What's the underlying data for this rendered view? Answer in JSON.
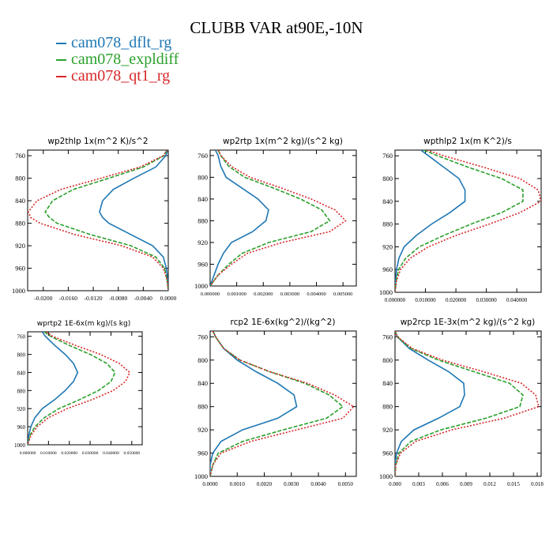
{
  "figure": {
    "title": "CLUBB VAR at90E,-10N",
    "legend": [
      {
        "name": "cam078_dflt_rg",
        "color": "#1f77b4",
        "dash": "solid"
      },
      {
        "name": "cam078_expldiff",
        "color": "#2ca02c",
        "dash": "dash"
      },
      {
        "name": "cam078_qt1_rg",
        "color": "#d62728",
        "dash": "dot"
      }
    ]
  },
  "chart_data": [
    {
      "type": "line",
      "title": "wp2thlp  1x(m^2 K)/s^2",
      "ylim": [
        1000,
        750
      ],
      "yticks": [
        "760",
        "800",
        "840",
        "880",
        "920",
        "960",
        "1000"
      ],
      "ytick_values": [
        760,
        800,
        840,
        880,
        920,
        960,
        1000
      ],
      "xlim": [
        -0.0225,
        0.0
      ],
      "xticks": [
        "-0.0200",
        "-0.0160",
        "-0.0120",
        "-0.0080",
        "-0.0040",
        "0.0000"
      ],
      "xtick_values": [
        -0.02,
        -0.016,
        -0.012,
        -0.008,
        -0.004,
        0.0
      ],
      "y": [
        750,
        760,
        780,
        800,
        820,
        840,
        860,
        870,
        880,
        900,
        920,
        940,
        960,
        980,
        1000
      ],
      "series": [
        {
          "name": "cam078_dflt_rg",
          "values": [
            -0.0001,
            -0.0004,
            -0.002,
            -0.0055,
            -0.0088,
            -0.0105,
            -0.011,
            -0.0105,
            -0.0095,
            -0.006,
            -0.0025,
            -0.0008,
            -0.0003,
            -0.0001,
            0.0
          ]
        },
        {
          "name": "cam078_expldiff",
          "values": [
            -0.0002,
            -0.0007,
            -0.004,
            -0.0095,
            -0.0152,
            -0.0185,
            -0.0197,
            -0.019,
            -0.0178,
            -0.0125,
            -0.006,
            -0.002,
            -0.0006,
            -0.0002,
            0.0
          ]
        },
        {
          "name": "cam078_qt1_rg",
          "values": [
            -0.0002,
            -0.0008,
            -0.0045,
            -0.0108,
            -0.0172,
            -0.021,
            -0.0224,
            -0.022,
            -0.0205,
            -0.015,
            -0.0075,
            -0.0025,
            -0.0008,
            -0.0002,
            0.0
          ]
        }
      ]
    },
    {
      "type": "line",
      "title": "wp2rtp  1x(m^2 kg)/(s^2 kg)",
      "ylim": [
        1000,
        750
      ],
      "yticks": [
        "760",
        "800",
        "840",
        "880",
        "920",
        "960",
        "1000"
      ],
      "ytick_values": [
        760,
        800,
        840,
        880,
        920,
        960,
        1000
      ],
      "xlim": [
        0.0,
        0.0055
      ],
      "xticks": [
        "0.000000",
        "0.001000",
        "0.002000",
        "0.003000",
        "0.004000",
        "0.005000"
      ],
      "xtick_values": [
        0.0,
        0.001,
        0.002,
        0.003,
        0.004,
        0.005
      ],
      "y": [
        750,
        760,
        780,
        800,
        820,
        840,
        860,
        880,
        900,
        920,
        940,
        960,
        980,
        1000
      ],
      "series": [
        {
          "name": "cam078_dflt_rg",
          "values": [
            0.0002,
            0.0003,
            0.0004,
            0.0006,
            0.0012,
            0.0018,
            0.0022,
            0.0021,
            0.0016,
            0.0008,
            0.0005,
            0.0003,
            0.00015,
            0.0
          ]
        },
        {
          "name": "cam078_expldiff",
          "values": [
            0.0003,
            0.0004,
            0.0007,
            0.0013,
            0.0024,
            0.0034,
            0.0042,
            0.0045,
            0.0038,
            0.0022,
            0.0012,
            0.0007,
            0.0003,
            0.0
          ]
        },
        {
          "name": "cam078_qt1_rg",
          "values": [
            0.0003,
            0.0004,
            0.0008,
            0.0015,
            0.0027,
            0.0038,
            0.0047,
            0.0051,
            0.0045,
            0.0027,
            0.0014,
            0.0008,
            0.0003,
            0.0
          ]
        }
      ]
    },
    {
      "type": "line",
      "title": "wpthlp2  1x(m K^2)/s",
      "ylim": [
        1000,
        750
      ],
      "yticks": [
        "760",
        "800",
        "840",
        "880",
        "920",
        "960",
        "1000"
      ],
      "ytick_values": [
        760,
        800,
        840,
        880,
        920,
        960,
        1000
      ],
      "xlim": [
        0.0,
        0.048
      ],
      "xticks": [
        "0.000000",
        "0.010000",
        "0.020000",
        "0.030000",
        "0.040000"
      ],
      "xtick_values": [
        0.0,
        0.01,
        0.02,
        0.03,
        0.04
      ],
      "y": [
        750,
        760,
        780,
        800,
        820,
        840,
        860,
        880,
        900,
        920,
        940,
        960,
        980,
        1000
      ],
      "series": [
        {
          "name": "cam078_dflt_rg",
          "values": [
            0.0085,
            0.011,
            0.016,
            0.021,
            0.023,
            0.023,
            0.018,
            0.012,
            0.007,
            0.003,
            0.0013,
            0.0005,
            0.0002,
            0.0
          ]
        },
        {
          "name": "cam078_expldiff",
          "values": [
            0.0095,
            0.014,
            0.024,
            0.035,
            0.042,
            0.042,
            0.035,
            0.025,
            0.016,
            0.008,
            0.0035,
            0.0012,
            0.0004,
            0.0
          ]
        },
        {
          "name": "cam078_qt1_rg",
          "values": [
            0.0105,
            0.016,
            0.029,
            0.041,
            0.047,
            0.048,
            0.041,
            0.031,
            0.02,
            0.011,
            0.005,
            0.0018,
            0.0005,
            0.0
          ]
        }
      ]
    },
    {
      "type": "line",
      "title": "wprtp2  1E-6x(m kg)/(s kg)",
      "ylim": [
        1000,
        750
      ],
      "yticks": [
        "760",
        "800",
        "840",
        "880",
        "920",
        "960",
        "1000"
      ],
      "ytick_values": [
        760,
        800,
        840,
        880,
        920,
        960,
        1000
      ],
      "xlim": [
        0.0,
        0.055
      ],
      "xticks": [
        "0.000000",
        "0.010000",
        "0.020000",
        "0.030000",
        "0.040000",
        "0.050000"
      ],
      "xtick_values": [
        0.0,
        0.01,
        0.02,
        0.03,
        0.04,
        0.05
      ],
      "y": [
        750,
        760,
        780,
        800,
        820,
        840,
        860,
        880,
        900,
        920,
        940,
        960,
        980,
        1000
      ],
      "series": [
        {
          "name": "cam078_dflt_rg",
          "values": [
            0.007,
            0.0085,
            0.013,
            0.018,
            0.022,
            0.024,
            0.022,
            0.018,
            0.013,
            0.007,
            0.0035,
            0.0015,
            0.0005,
            0.0
          ]
        },
        {
          "name": "cam078_expldiff",
          "values": [
            0.008,
            0.011,
            0.02,
            0.03,
            0.038,
            0.042,
            0.04,
            0.034,
            0.025,
            0.015,
            0.008,
            0.0035,
            0.001,
            0.0
          ]
        },
        {
          "name": "cam078_qt1_rg",
          "values": [
            0.009,
            0.012,
            0.023,
            0.035,
            0.044,
            0.049,
            0.047,
            0.041,
            0.031,
            0.019,
            0.01,
            0.0045,
            0.0015,
            0.0
          ]
        }
      ]
    },
    {
      "type": "line",
      "title": "rcp2  1E-6x(kg^2)/(kg^2)",
      "ylim": [
        1000,
        750
      ],
      "yticks": [
        "760",
        "800",
        "840",
        "880",
        "920",
        "960",
        "1000"
      ],
      "ytick_values": [
        760,
        800,
        840,
        880,
        920,
        960,
        1000
      ],
      "xlim": [
        0.0,
        0.0054
      ],
      "xticks": [
        "0.0000",
        "0.0010",
        "0.0020",
        "0.0030",
        "0.0040",
        "0.0050"
      ],
      "xtick_values": [
        0.0,
        0.001,
        0.002,
        0.003,
        0.004,
        0.005
      ],
      "y": [
        750,
        760,
        780,
        800,
        820,
        840,
        860,
        880,
        900,
        920,
        940,
        960,
        980,
        1000
      ],
      "series": [
        {
          "name": "cam078_dflt_rg",
          "values": [
            0.0001,
            0.0002,
            0.0005,
            0.001,
            0.0017,
            0.0025,
            0.0031,
            0.0032,
            0.0025,
            0.0012,
            0.0004,
            0.0001,
            0.0,
            0.0
          ]
        },
        {
          "name": "cam078_expldiff",
          "values": [
            0.0001,
            0.0002,
            0.0005,
            0.0011,
            0.0022,
            0.0035,
            0.0044,
            0.0049,
            0.0043,
            0.0027,
            0.0012,
            0.0003,
            0.0001,
            0.0
          ]
        },
        {
          "name": "cam078_qt1_rg",
          "values": [
            0.0001,
            0.0002,
            0.0005,
            0.0011,
            0.0022,
            0.0036,
            0.0046,
            0.0053,
            0.0049,
            0.0032,
            0.0015,
            0.0004,
            0.0001,
            0.0
          ]
        }
      ]
    },
    {
      "type": "line",
      "title": "wp2rcp  1E-3x(m^2 kg)/(s^2 kg)",
      "ylim": [
        1000,
        750
      ],
      "yticks": [
        "760",
        "800",
        "840",
        "880",
        "920",
        "960",
        "1000"
      ],
      "ytick_values": [
        760,
        800,
        840,
        880,
        920,
        960,
        1000
      ],
      "xlim": [
        0.0,
        0.0185
      ],
      "xticks": [
        "0.000",
        "0.003",
        "0.006",
        "0.009",
        "0.012",
        "0.015",
        "0.018"
      ],
      "xtick_values": [
        0.0,
        0.003,
        0.006,
        0.009,
        0.012,
        0.015,
        0.018
      ],
      "y": [
        750,
        760,
        780,
        800,
        820,
        840,
        860,
        880,
        900,
        920,
        940,
        960,
        980,
        1000
      ],
      "series": [
        {
          "name": "cam078_dflt_rg",
          "values": [
            0.0,
            0.0003,
            0.0018,
            0.0042,
            0.0068,
            0.0087,
            0.0088,
            0.0082,
            0.0055,
            0.0024,
            0.0008,
            0.0002,
            0.0,
            0.0
          ]
        },
        {
          "name": "cam078_expldiff",
          "values": [
            0.0,
            0.0003,
            0.002,
            0.0055,
            0.01,
            0.0145,
            0.0162,
            0.0158,
            0.0115,
            0.0058,
            0.002,
            0.0005,
            0.0001,
            0.0
          ]
        },
        {
          "name": "cam078_qt1_rg",
          "values": [
            0.0,
            0.0003,
            0.0022,
            0.006,
            0.0112,
            0.016,
            0.0178,
            0.0182,
            0.0138,
            0.0072,
            0.0026,
            0.0007,
            0.0001,
            0.0
          ]
        }
      ]
    }
  ]
}
